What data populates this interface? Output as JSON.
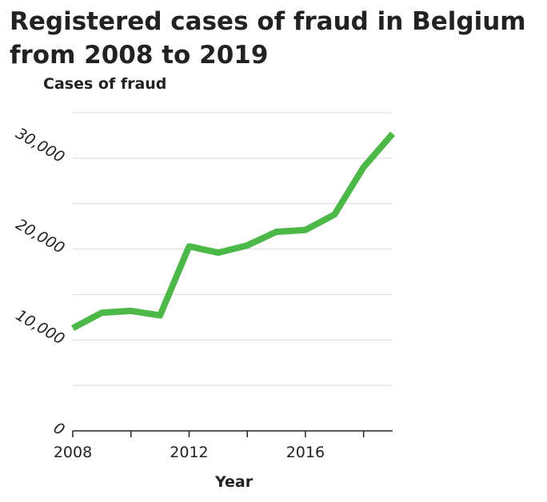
{
  "chart_data": {
    "type": "line",
    "title": "Registered cases of fraud in Belgium from 2008 to 2019",
    "xlabel": "Year",
    "ylabel": "Cases of fraud",
    "x": [
      2008,
      2009,
      2010,
      2011,
      2012,
      2013,
      2014,
      2015,
      2016,
      2017,
      2018,
      2019
    ],
    "series": [
      {
        "values": [
          11300,
          13000,
          13200,
          12700,
          20300,
          19600,
          20400,
          21900,
          22100,
          23800,
          29000,
          32700
        ],
        "color": "#4cb847"
      }
    ],
    "xlim": [
      2008,
      2019
    ],
    "ylim": [
      0,
      35000
    ],
    "x_ticks": [
      2008,
      2010,
      2012,
      2014,
      2016,
      2018
    ],
    "x_tick_labels": [
      "2008",
      "",
      "2012",
      "",
      "2016",
      ""
    ],
    "y_ticks": [
      0,
      10000,
      20000,
      30000
    ],
    "y_tick_labels": [
      "0",
      "10,000",
      "20,000",
      "30,000"
    ],
    "y_grid_step": 5000,
    "grid": true
  }
}
